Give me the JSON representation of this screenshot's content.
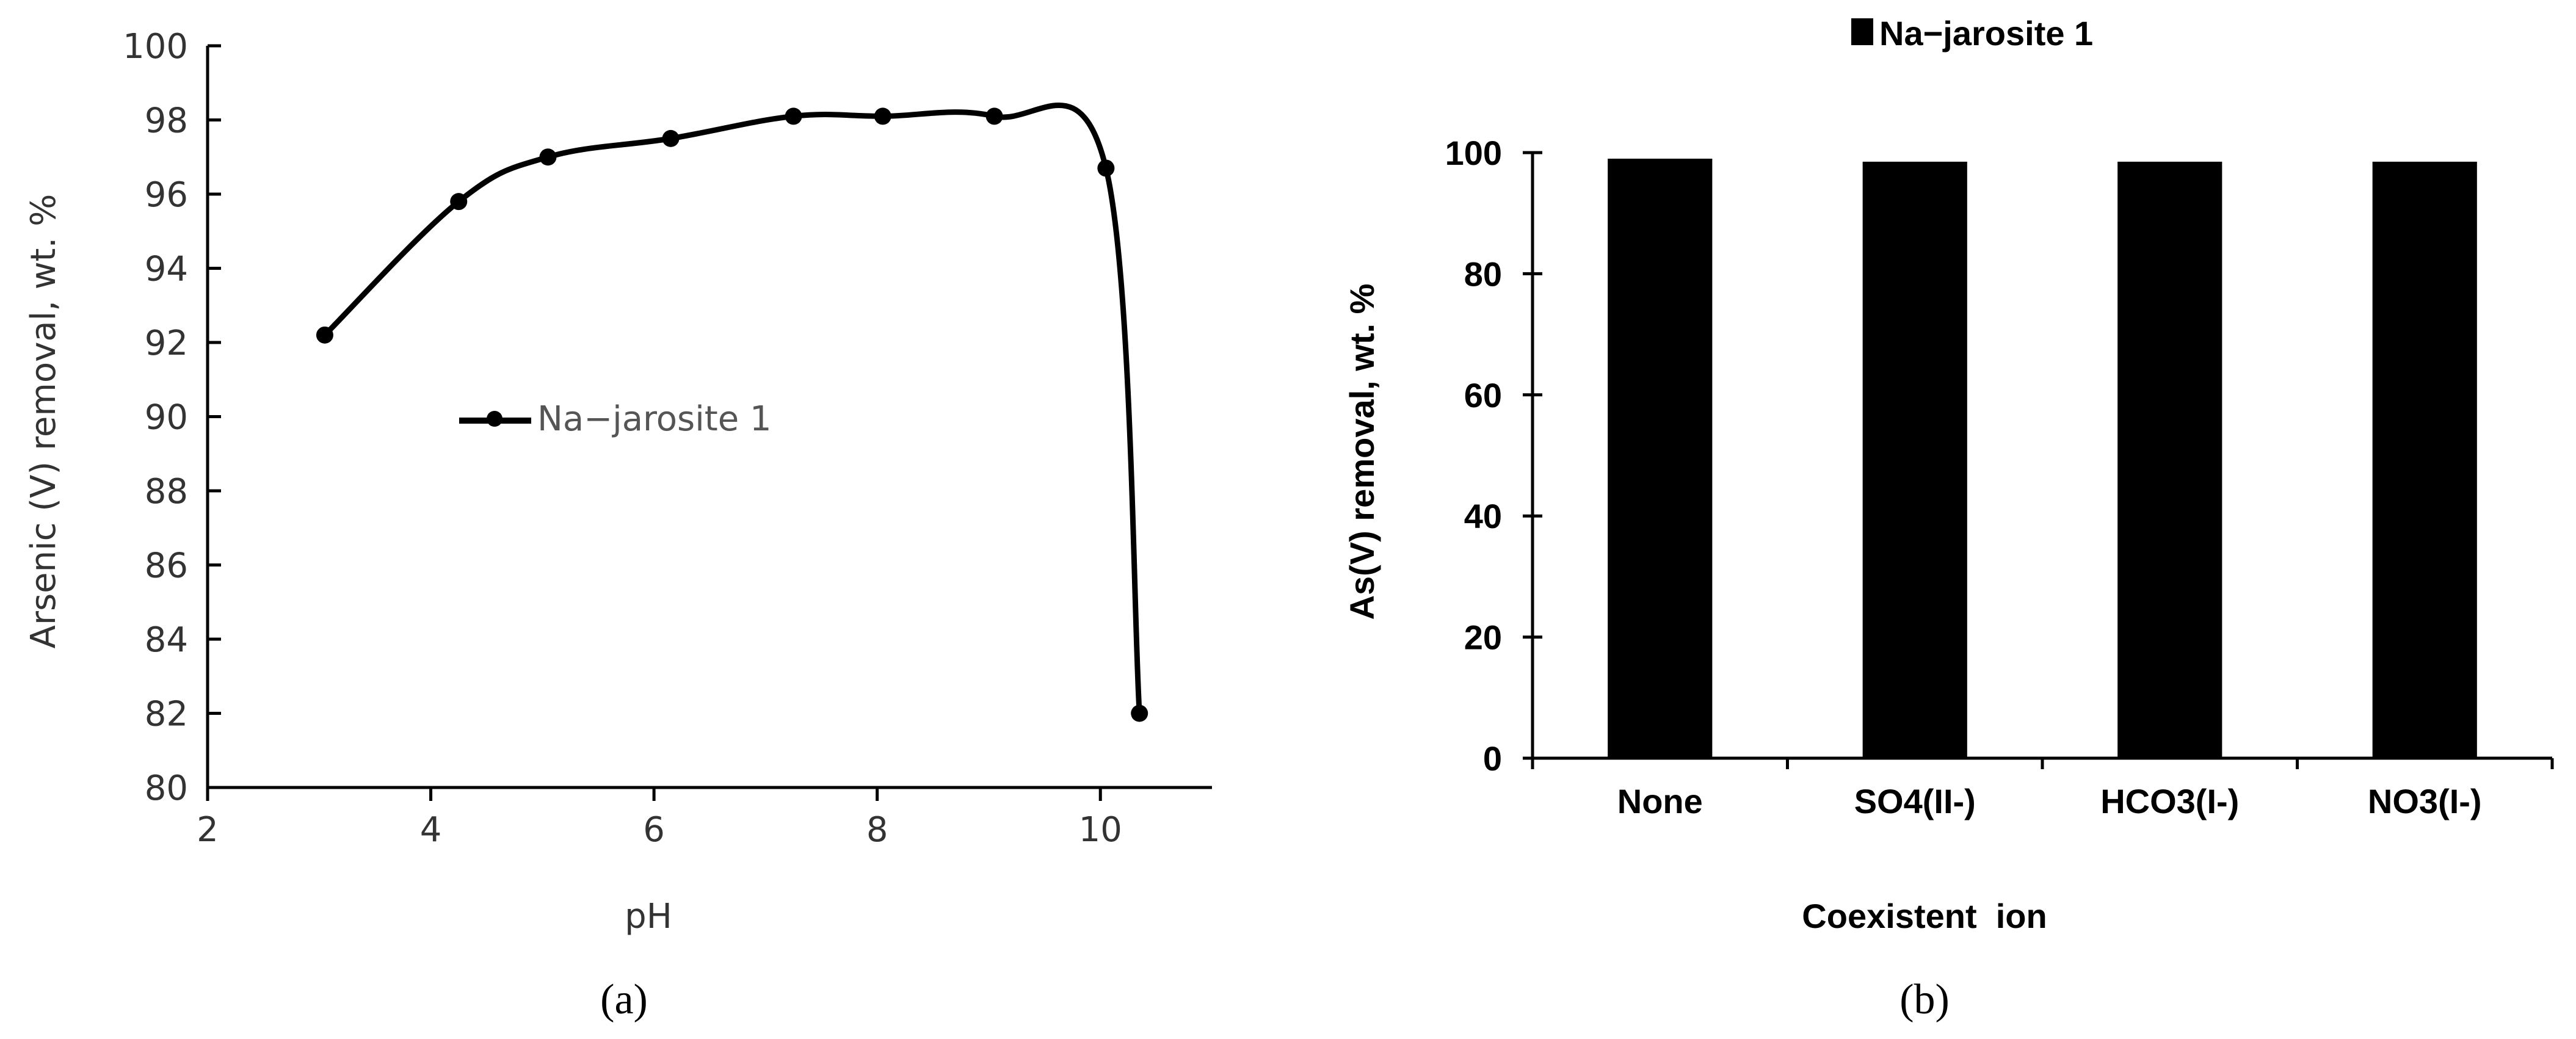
{
  "chart_data": [
    {
      "type": "line",
      "panel_label": "(a)",
      "xlabel": "pH",
      "ylabel": "Arsenic (V) removal, wt. %",
      "xlim": [
        2,
        11
      ],
      "ylim": [
        80,
        100
      ],
      "xticks": [
        2,
        4,
        6,
        8,
        10
      ],
      "yticks": [
        80,
        82,
        84,
        86,
        88,
        90,
        92,
        94,
        96,
        98,
        100
      ],
      "legend_position": "middle-left",
      "series": [
        {
          "name": "Na−jarosite 1",
          "color": "#000000",
          "marker": "circle",
          "x": [
            3.05,
            4.25,
            5.05,
            6.15,
            7.25,
            8.05,
            9.05,
            10.05,
            10.35
          ],
          "y": [
            92.2,
            95.8,
            97.0,
            97.5,
            98.1,
            98.1,
            98.1,
            96.7,
            82.0
          ]
        }
      ]
    },
    {
      "type": "bar",
      "panel_label": "(b)",
      "title": "",
      "xlabel": "Coexistent  ion",
      "ylabel": "As(V) removal, wt. %",
      "ylim": [
        0,
        100
      ],
      "yticks": [
        0,
        20,
        40,
        60,
        80,
        100
      ],
      "legend_position": "top-center",
      "categories": [
        "None",
        "SO4(II-)",
        "HCO3(I-)",
        "NO3(I-)"
      ],
      "series": [
        {
          "name": "Na−jarosite 1",
          "color": "#000000",
          "values": [
            99.0,
            98.5,
            98.5,
            98.5
          ]
        }
      ]
    }
  ]
}
